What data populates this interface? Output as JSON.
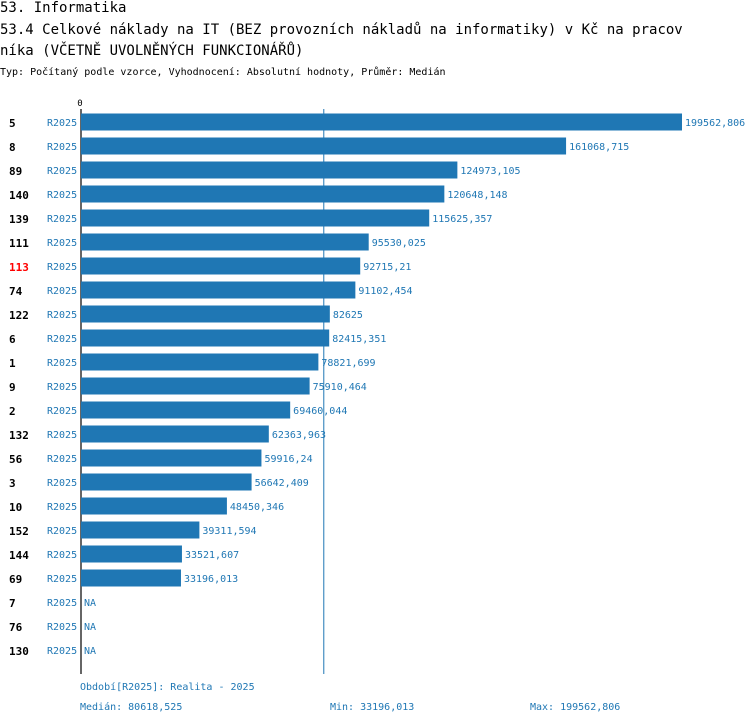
{
  "heading": {
    "section": "53. Informatika",
    "title_line1": "53.4 Celkové náklady na IT (BEZ provozních nákladů na informatiky) v Kč na pracov",
    "title_line2": "níka (VČETNĚ UVOLNĚNÝCH FUNKCIONÁŘŮ)",
    "subtitle": "Typ: Počítaný podle vzorce, Vyhodnocení: Absolutní hodnoty, Průměr: Medián"
  },
  "chart_data": {
    "type": "bar",
    "orientation": "horizontal",
    "axis_zero_label": "0",
    "xlim": [
      0,
      199562.806
    ],
    "median_line": 80618.525,
    "series_label": "R2025",
    "bar_color": "#1f77b4",
    "highlight_color": "#ff0000",
    "rows": [
      {
        "id": "5",
        "period": "R2025",
        "value": 199562.806,
        "label": "199562,806",
        "highlight": false
      },
      {
        "id": "8",
        "period": "R2025",
        "value": 161068.715,
        "label": "161068,715",
        "highlight": false
      },
      {
        "id": "89",
        "period": "R2025",
        "value": 124973.105,
        "label": "124973,105",
        "highlight": false
      },
      {
        "id": "140",
        "period": "R2025",
        "value": 120648.148,
        "label": "120648,148",
        "highlight": false
      },
      {
        "id": "139",
        "period": "R2025",
        "value": 115625.357,
        "label": "115625,357",
        "highlight": false
      },
      {
        "id": "111",
        "period": "R2025",
        "value": 95530.025,
        "label": "95530,025",
        "highlight": false
      },
      {
        "id": "113",
        "period": "R2025",
        "value": 92715.21,
        "label": "92715,21",
        "highlight": true
      },
      {
        "id": "74",
        "period": "R2025",
        "value": 91102.454,
        "label": "91102,454",
        "highlight": false
      },
      {
        "id": "122",
        "period": "R2025",
        "value": 82625,
        "label": "82625",
        "highlight": false
      },
      {
        "id": "6",
        "period": "R2025",
        "value": 82415.351,
        "label": "82415,351",
        "highlight": false
      },
      {
        "id": "1",
        "period": "R2025",
        "value": 78821.699,
        "label": "78821,699",
        "highlight": false
      },
      {
        "id": "9",
        "period": "R2025",
        "value": 75910.464,
        "label": "75910,464",
        "highlight": false
      },
      {
        "id": "2",
        "period": "R2025",
        "value": 69460.044,
        "label": "69460,044",
        "highlight": false
      },
      {
        "id": "132",
        "period": "R2025",
        "value": 62363.963,
        "label": "62363,963",
        "highlight": false
      },
      {
        "id": "56",
        "period": "R2025",
        "value": 59916.24,
        "label": "59916,24",
        "highlight": false
      },
      {
        "id": "3",
        "period": "R2025",
        "value": 56642.409,
        "label": "56642,409",
        "highlight": false
      },
      {
        "id": "10",
        "period": "R2025",
        "value": 48450.346,
        "label": "48450,346",
        "highlight": false
      },
      {
        "id": "152",
        "period": "R2025",
        "value": 39311.594,
        "label": "39311,594",
        "highlight": false
      },
      {
        "id": "144",
        "period": "R2025",
        "value": 33521.607,
        "label": "33521,607",
        "highlight": false
      },
      {
        "id": "69",
        "period": "R2025",
        "value": 33196.013,
        "label": "33196,013",
        "highlight": false
      },
      {
        "id": "7",
        "period": "R2025",
        "value": null,
        "label": "NA",
        "highlight": false
      },
      {
        "id": "76",
        "period": "R2025",
        "value": null,
        "label": "NA",
        "highlight": false
      },
      {
        "id": "130",
        "period": "R2025",
        "value": null,
        "label": "NA",
        "highlight": false
      }
    ]
  },
  "footer": {
    "period": "Období[R2025]: Realita - 2025",
    "median": "Medián: 80618,525",
    "min": "Min: 33196,013",
    "max": "Max: 199562,806"
  }
}
